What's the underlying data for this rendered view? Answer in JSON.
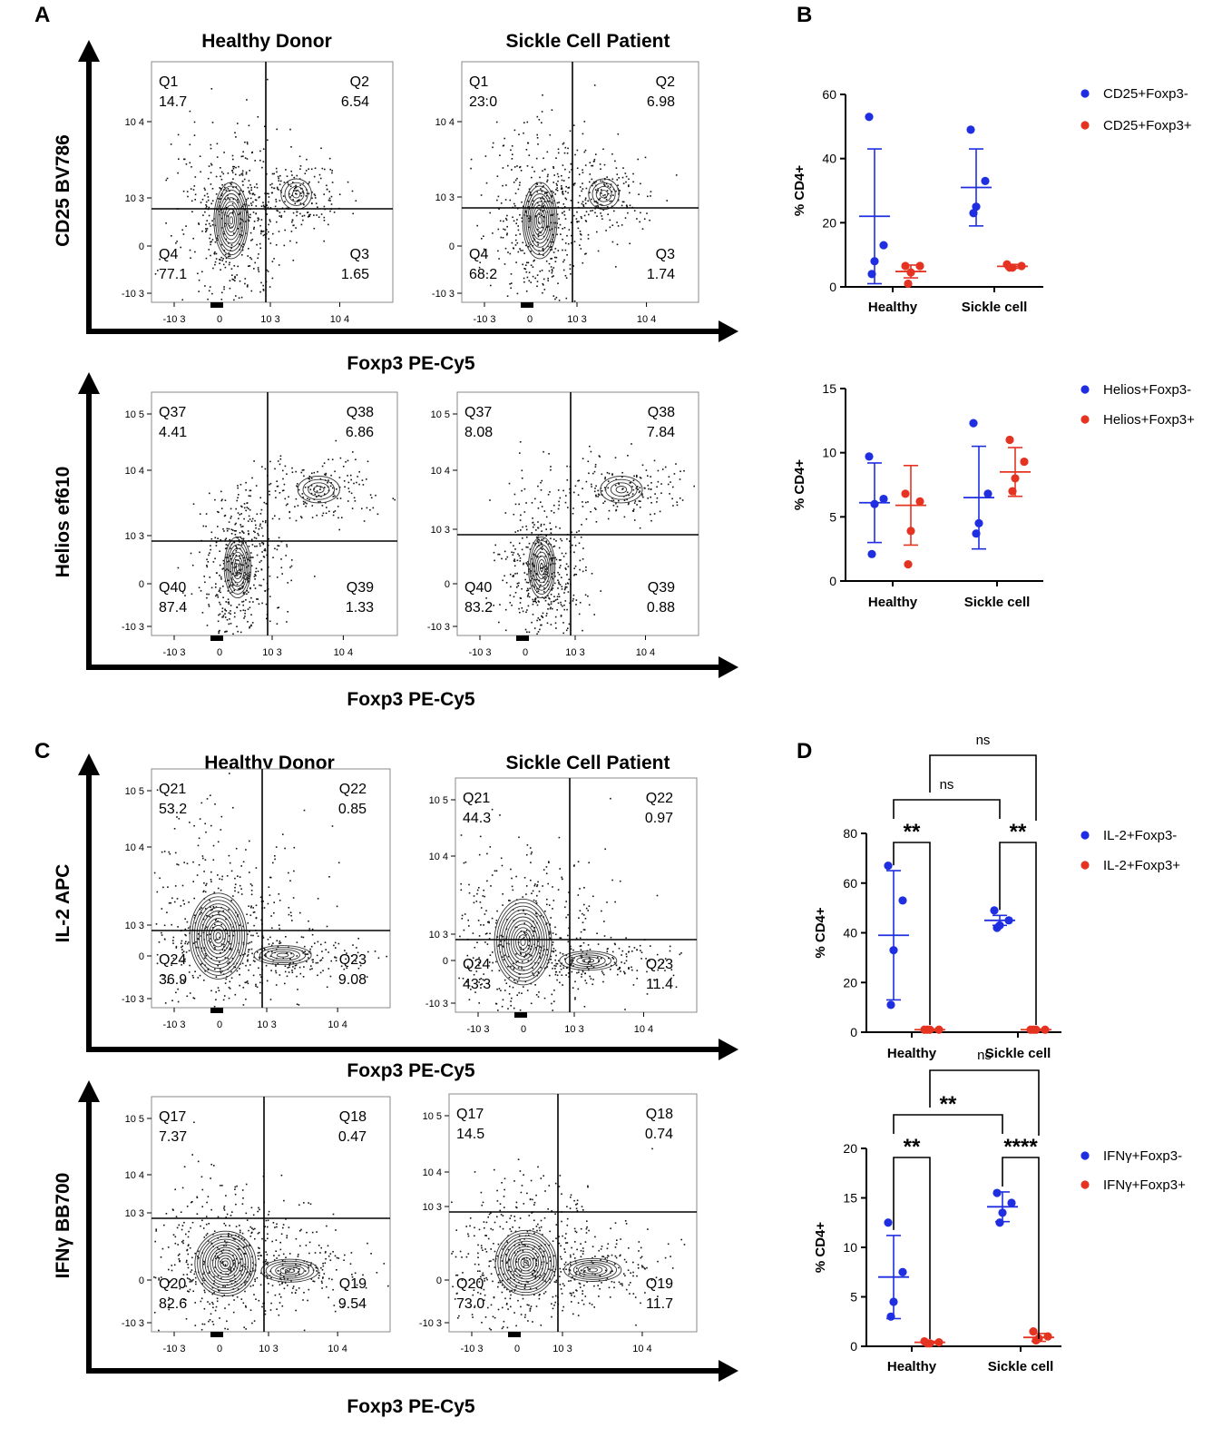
{
  "panels": {
    "A": "A",
    "B": "B",
    "C": "C",
    "D": "D"
  },
  "colors": {
    "blue": "#1f2ee0",
    "red": "#e53322",
    "axis": "#000000"
  },
  "column_titles": [
    "Healthy Donor",
    "Sickle Cell Patient",
    "Healthy Donor",
    "Sickle Cell Patient"
  ],
  "flow_tick_labels": {
    "x": [
      "-10 3",
      "0",
      "10 3",
      "10 4"
    ],
    "y": [
      "-10 3",
      "0",
      "10 3",
      "10 4",
      "10 5"
    ]
  },
  "chart_data": [
    {
      "type": "flow-contour",
      "panel": "A",
      "ylabel": "CD25 BV786",
      "xlabel": "Foxp3 PE-Cy5",
      "plots": [
        {
          "sample": "Healthy Donor",
          "quadrants": [
            {
              "name": "Q1",
              "value": "14.7"
            },
            {
              "name": "Q2",
              "value": "6.54"
            },
            {
              "name": "Q3",
              "value": "1.65"
            },
            {
              "name": "Q4",
              "value": "77.1"
            }
          ]
        },
        {
          "sample": "Sickle Cell Patient",
          "quadrants": [
            {
              "name": "Q1",
              "value": "23.0"
            },
            {
              "name": "Q2",
              "value": "6.98"
            },
            {
              "name": "Q3",
              "value": "1.74"
            },
            {
              "name": "Q4",
              "value": "68.2"
            }
          ]
        }
      ]
    },
    {
      "type": "flow-contour",
      "panel": "A",
      "ylabel": "Helios ef610",
      "xlabel": "Foxp3 PE-Cy5",
      "plots": [
        {
          "sample": "Healthy Donor",
          "quadrants": [
            {
              "name": "Q37",
              "value": "4.41"
            },
            {
              "name": "Q38",
              "value": "6.86"
            },
            {
              "name": "Q39",
              "value": "1.33"
            },
            {
              "name": "Q40",
              "value": "87.4"
            }
          ]
        },
        {
          "sample": "Sickle Cell Patient",
          "quadrants": [
            {
              "name": "Q37",
              "value": "8.08"
            },
            {
              "name": "Q38",
              "value": "7.84"
            },
            {
              "name": "Q39",
              "value": "0.88"
            },
            {
              "name": "Q40",
              "value": "83.2"
            }
          ]
        }
      ]
    },
    {
      "type": "flow-contour",
      "panel": "C",
      "ylabel": "IL-2 APC",
      "xlabel": "Foxp3 PE-Cy5",
      "plots": [
        {
          "sample": "Healthy Donor",
          "quadrants": [
            {
              "name": "Q21",
              "value": "53.2"
            },
            {
              "name": "Q22",
              "value": "0.85"
            },
            {
              "name": "Q23",
              "value": "9.08"
            },
            {
              "name": "Q24",
              "value": "36.9"
            }
          ]
        },
        {
          "sample": "Sickle Cell Patient",
          "quadrants": [
            {
              "name": "Q21",
              "value": "44.3"
            },
            {
              "name": "Q22",
              "value": "0.97"
            },
            {
              "name": "Q23",
              "value": "11.4"
            },
            {
              "name": "Q24",
              "value": "43.3"
            }
          ]
        }
      ]
    },
    {
      "type": "flow-contour",
      "panel": "C",
      "ylabel": "IFNγ BB700",
      "xlabel": "Foxp3 PE-Cy5",
      "plots": [
        {
          "sample": "Healthy Donor",
          "quadrants": [
            {
              "name": "Q17",
              "value": "7.37"
            },
            {
              "name": "Q18",
              "value": "0.47"
            },
            {
              "name": "Q19",
              "value": "9.54"
            },
            {
              "name": "Q20",
              "value": "82.6"
            }
          ]
        },
        {
          "sample": "Sickle Cell Patient",
          "quadrants": [
            {
              "name": "Q17",
              "value": "14.5"
            },
            {
              "name": "Q18",
              "value": "0.74"
            },
            {
              "name": "Q19",
              "value": "11.7"
            },
            {
              "name": "Q20",
              "value": "73.0"
            }
          ]
        }
      ]
    },
    {
      "type": "scatter",
      "panel": "B",
      "ylabel": "% CD4+",
      "ylim": [
        0,
        60
      ],
      "yticks": [
        0,
        20,
        40,
        60
      ],
      "categories": [
        "Healthy",
        "Sickle cell"
      ],
      "series": [
        {
          "name": "CD25+Foxp3-",
          "color": "#1f2ee0",
          "points": [
            [
              53,
              13,
              8,
              4
            ],
            [
              49,
              33,
              25,
              23
            ]
          ],
          "mean": [
            22,
            31
          ],
          "sd": [
            21,
            12
          ]
        },
        {
          "name": "CD25+Foxp3+",
          "color": "#e53322",
          "points": [
            [
              6.5,
              6.5,
              4.5,
              1
            ],
            [
              7,
              6.5,
              6,
              6
            ]
          ],
          "mean": [
            4.8,
            6.4
          ],
          "sd": [
            2,
            0.6
          ]
        }
      ]
    },
    {
      "type": "scatter",
      "panel": "B",
      "ylabel": "% CD4+",
      "ylim": [
        0,
        15
      ],
      "yticks": [
        0,
        5,
        10,
        15
      ],
      "categories": [
        "Healthy",
        "Sickle cell"
      ],
      "series": [
        {
          "name": "Helios+Foxp3-",
          "color": "#1f2ee0",
          "points": [
            [
              9.7,
              6.4,
              6,
              2.1
            ],
            [
              12.3,
              6.8,
              4.5,
              3.7
            ]
          ],
          "mean": [
            6.1,
            6.5
          ],
          "sd": [
            3.1,
            4
          ]
        },
        {
          "name": "Helios+Foxp3+",
          "color": "#e53322",
          "points": [
            [
              6.8,
              6.2,
              3.9,
              1.3
            ],
            [
              11,
              9.3,
              8,
              7
            ]
          ],
          "mean": [
            5.9,
            8.5
          ],
          "sd": [
            3.1,
            1.9
          ]
        }
      ]
    },
    {
      "type": "scatter",
      "panel": "D",
      "ylabel": "% CD4+",
      "ylim": [
        0,
        80
      ],
      "yticks": [
        0,
        20,
        40,
        60,
        80
      ],
      "categories": [
        "Healthy",
        "Sickle cell"
      ],
      "series": [
        {
          "name": "IL-2+Foxp3-",
          "color": "#1f2ee0",
          "points": [
            [
              67,
              53,
              33,
              11
            ],
            [
              49,
              45,
              43,
              42
            ]
          ],
          "mean": [
            39,
            45
          ],
          "sd": [
            26,
            2
          ]
        },
        {
          "name": "IL-2+Foxp3+",
          "color": "#e53322",
          "points": [
            [
              1,
              1,
              1,
              1
            ],
            [
              1,
              1,
              1,
              1
            ]
          ],
          "mean": [
            1,
            1
          ],
          "sd": [
            0.3,
            0.3
          ]
        }
      ],
      "significance": [
        {
          "label": "**",
          "between": "within Healthy"
        },
        {
          "label": "**",
          "between": "within Sickle cell"
        },
        {
          "label": "ns",
          "between": "Healthy vs Sickle cell, Foxp3-"
        },
        {
          "label": "ns",
          "between": "Healthy vs Sickle cell, Foxp3+"
        }
      ]
    },
    {
      "type": "scatter",
      "panel": "D",
      "ylabel": "% CD4+",
      "ylim": [
        0,
        20
      ],
      "yticks": [
        0,
        5,
        10,
        15,
        20
      ],
      "categories": [
        "Healthy",
        "Sickle cell"
      ],
      "series": [
        {
          "name": "IFNγ+Foxp3-",
          "color": "#1f2ee0",
          "points": [
            [
              12.5,
              7.5,
              4.5,
              3
            ],
            [
              15.5,
              14.5,
              13.5,
              12.5
            ]
          ],
          "mean": [
            7,
            14.1
          ],
          "sd": [
            4.2,
            1.5
          ]
        },
        {
          "name": "IFNγ+Foxp3+",
          "color": "#e53322",
          "points": [
            [
              0.5,
              0.4,
              0.3,
              0.3
            ],
            [
              1.5,
              1,
              0.8,
              0.6
            ]
          ],
          "mean": [
            0.4,
            0.9
          ],
          "sd": [
            0.1,
            0.4
          ]
        }
      ],
      "significance": [
        {
          "label": "**",
          "between": "within Healthy"
        },
        {
          "label": "****",
          "between": "within Sickle cell"
        },
        {
          "label": "**",
          "between": "Healthy vs Sickle cell, Foxp3-"
        },
        {
          "label": "ns",
          "between": "Healthy vs Sickle cell, Foxp3+"
        }
      ]
    }
  ]
}
